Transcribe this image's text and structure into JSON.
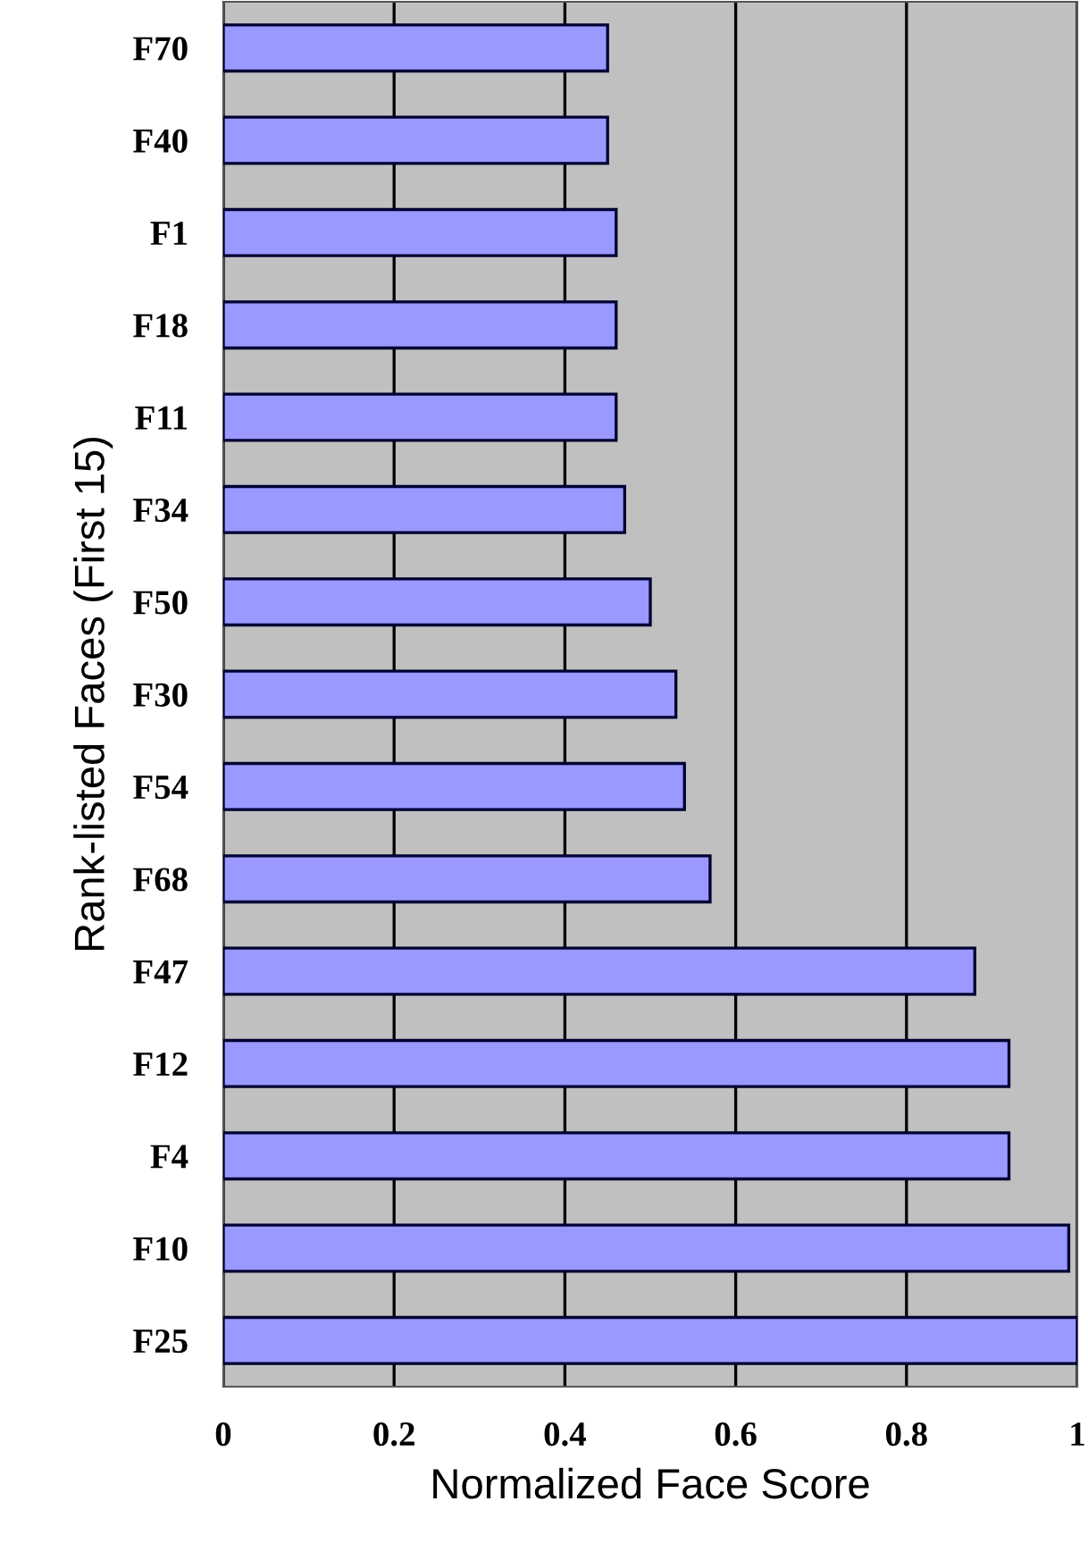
{
  "chart_data": {
    "type": "bar",
    "orientation": "horizontal",
    "xlabel": "Normalized Face Score",
    "ylabel": "Rank-listed Faces (First 15)",
    "categories": [
      "F70",
      "F40",
      "F1",
      "F18",
      "F11",
      "F34",
      "F50",
      "F30",
      "F54",
      "F68",
      "F47",
      "F12",
      "F4",
      "F10",
      "F25"
    ],
    "values": [
      0.45,
      0.45,
      0.46,
      0.46,
      0.46,
      0.47,
      0.5,
      0.53,
      0.54,
      0.57,
      0.88,
      0.92,
      0.92,
      0.99,
      1.0
    ],
    "color": "#9999ff",
    "xlim": [
      0,
      1
    ],
    "xticks": [
      0,
      0.2,
      0.4,
      0.6,
      0.8,
      1
    ],
    "grid": "x",
    "legend": false
  }
}
